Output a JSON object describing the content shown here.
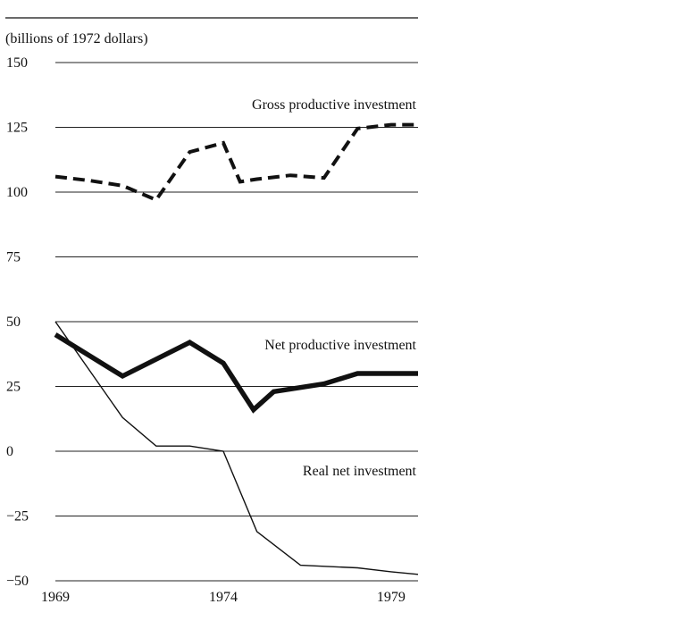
{
  "chart_data": {
    "type": "line",
    "title": "",
    "ylabel": "(billions of 1972 dollars)",
    "xlabel": "",
    "ylim": [
      -50,
      150
    ],
    "xlim": [
      1969,
      1979.8
    ],
    "y_ticks": [
      150,
      125,
      100,
      75,
      50,
      25,
      0,
      -25,
      -50
    ],
    "y_tick_labels": [
      "150",
      "125",
      "100",
      "75",
      "50",
      "25",
      "0",
      "−25",
      "−50"
    ],
    "x_ticks": [
      1969,
      1974,
      1979
    ],
    "x_tick_labels": [
      "1969",
      "1974",
      "1979"
    ],
    "grid": true,
    "legend": "none",
    "series": [
      {
        "name": "Gross productive investment",
        "style": "dashed",
        "x": [
          1969,
          1970,
          1971,
          1972,
          1973,
          1974,
          1974.5,
          1975,
          1976,
          1977,
          1978,
          1979,
          1979.8
        ],
        "values": [
          106,
          104.5,
          102.5,
          97,
          115.5,
          119,
          104,
          105,
          106.5,
          105.5,
          124.5,
          126,
          126
        ]
      },
      {
        "name": "Net productive investment",
        "style": "thick",
        "x": [
          1969,
          1971,
          1973,
          1974,
          1974.9,
          1975.5,
          1977,
          1978,
          1979,
          1979.8
        ],
        "values": [
          45,
          29,
          42,
          34,
          16,
          23,
          26,
          30,
          30,
          30
        ]
      },
      {
        "name": "Real net investment",
        "style": "thin",
        "x": [
          1969,
          1971,
          1972,
          1973,
          1974,
          1975,
          1976.3,
          1978,
          1979,
          1979.8
        ],
        "values": [
          50,
          13,
          2,
          2,
          0,
          -31,
          -44,
          -45,
          -46.5,
          -47.5
        ]
      }
    ]
  }
}
